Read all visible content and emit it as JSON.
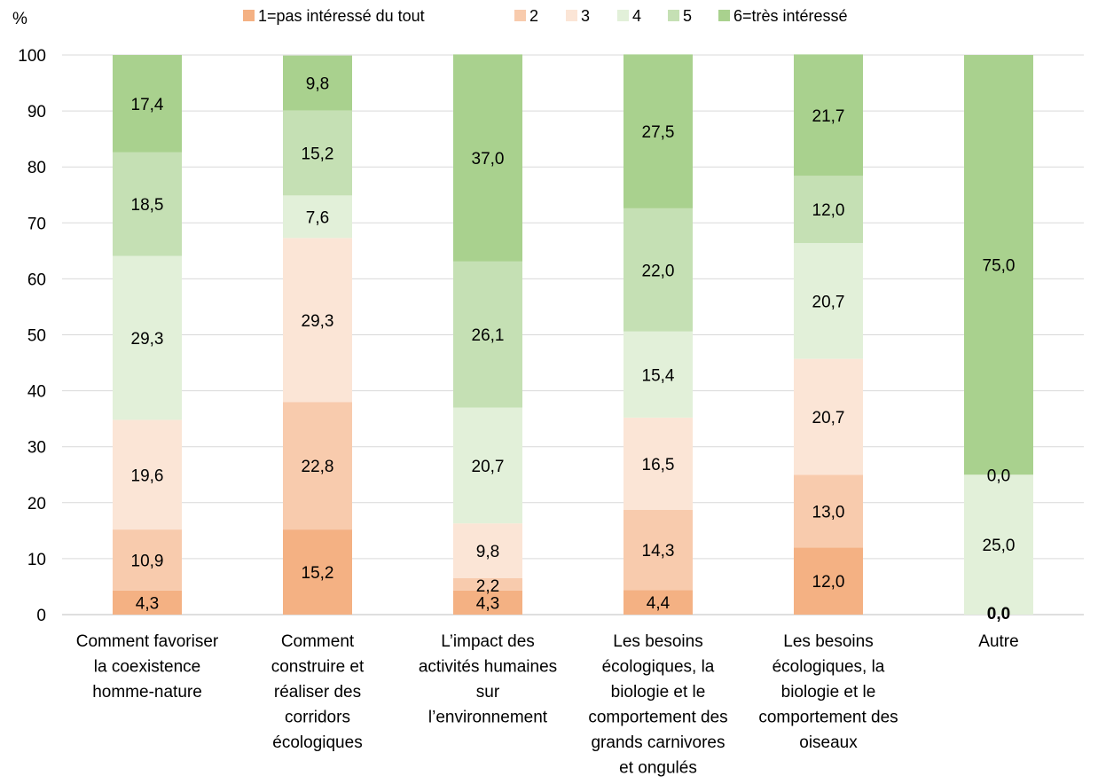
{
  "chart_data": {
    "type": "bar",
    "stacked": true,
    "ylabel": "%",
    "ylim": [
      0,
      100
    ],
    "yticks": [
      0,
      10,
      20,
      30,
      40,
      50,
      60,
      70,
      80,
      90,
      100
    ],
    "grid": true,
    "legend_position": "top",
    "categories": [
      "Comment favoriser la coexistence homme-nature",
      "Comment construire et réaliser des corridors écologiques",
      "L’impact des activités humaines sur l’environnement",
      "Les besoins écologiques, la biologie et le comportement des grands carnivores et ongulés",
      "Les besoins écologiques, la biologie et le comportement des oiseaux",
      "Autre"
    ],
    "category_lines": [
      [
        "Comment favoriser",
        "la coexistence",
        "homme-nature"
      ],
      [
        "Comment",
        "construire et",
        "réaliser des",
        "corridors",
        "écologiques"
      ],
      [
        "L’impact des",
        "activités humaines",
        "sur",
        "l’environnement"
      ],
      [
        "Les besoins",
        "écologiques, la",
        "biologie et le",
        "comportement des",
        "grands carnivores",
        "et ongulés"
      ],
      [
        "Les besoins",
        "écologiques, la",
        "biologie et le",
        "comportement des",
        "oiseaux"
      ],
      [
        "Autre"
      ]
    ],
    "series": [
      {
        "name": "1=pas intéressé du tout",
        "color": "#f4b183",
        "values": [
          4.3,
          15.2,
          4.3,
          4.4,
          12.0,
          0.0
        ]
      },
      {
        "name": "2",
        "color": "#f8cbad",
        "values": [
          10.9,
          22.8,
          2.2,
          14.3,
          13.0,
          0.0
        ]
      },
      {
        "name": "3",
        "color": "#fbe5d6",
        "values": [
          19.6,
          29.3,
          9.8,
          16.5,
          20.7,
          0.0
        ]
      },
      {
        "name": "4",
        "color": "#e2f0d9",
        "values": [
          29.3,
          7.6,
          20.7,
          15.4,
          20.7,
          25.0
        ]
      },
      {
        "name": "5",
        "color": "#c5e0b4",
        "values": [
          18.5,
          15.2,
          26.1,
          22.0,
          12.0,
          0.0
        ]
      },
      {
        "name": "6=très intéressé",
        "color": "#a9d18e",
        "values": [
          17.4,
          9.8,
          37.0,
          27.5,
          21.7,
          75.0
        ]
      }
    ],
    "data_labels": [
      [
        "4,3",
        "10,9",
        "19,6",
        "29,3",
        "18,5",
        "17,4"
      ],
      [
        "15,2",
        "22,8",
        "29,3",
        "7,6",
        "15,2",
        "9,8"
      ],
      [
        "4,3",
        "2,2",
        "9,8",
        "20,7",
        "26,1",
        "37,0"
      ],
      [
        "4,4",
        "14,3",
        "16,5",
        "15,4",
        "22,0",
        "27,5"
      ],
      [
        "12,0",
        "13,0",
        "20,7",
        "20,7",
        "12,0",
        "21,7"
      ],
      [
        "0,0",
        "0,0",
        "0,0",
        "25,0",
        "0,0",
        "75,0"
      ]
    ]
  }
}
